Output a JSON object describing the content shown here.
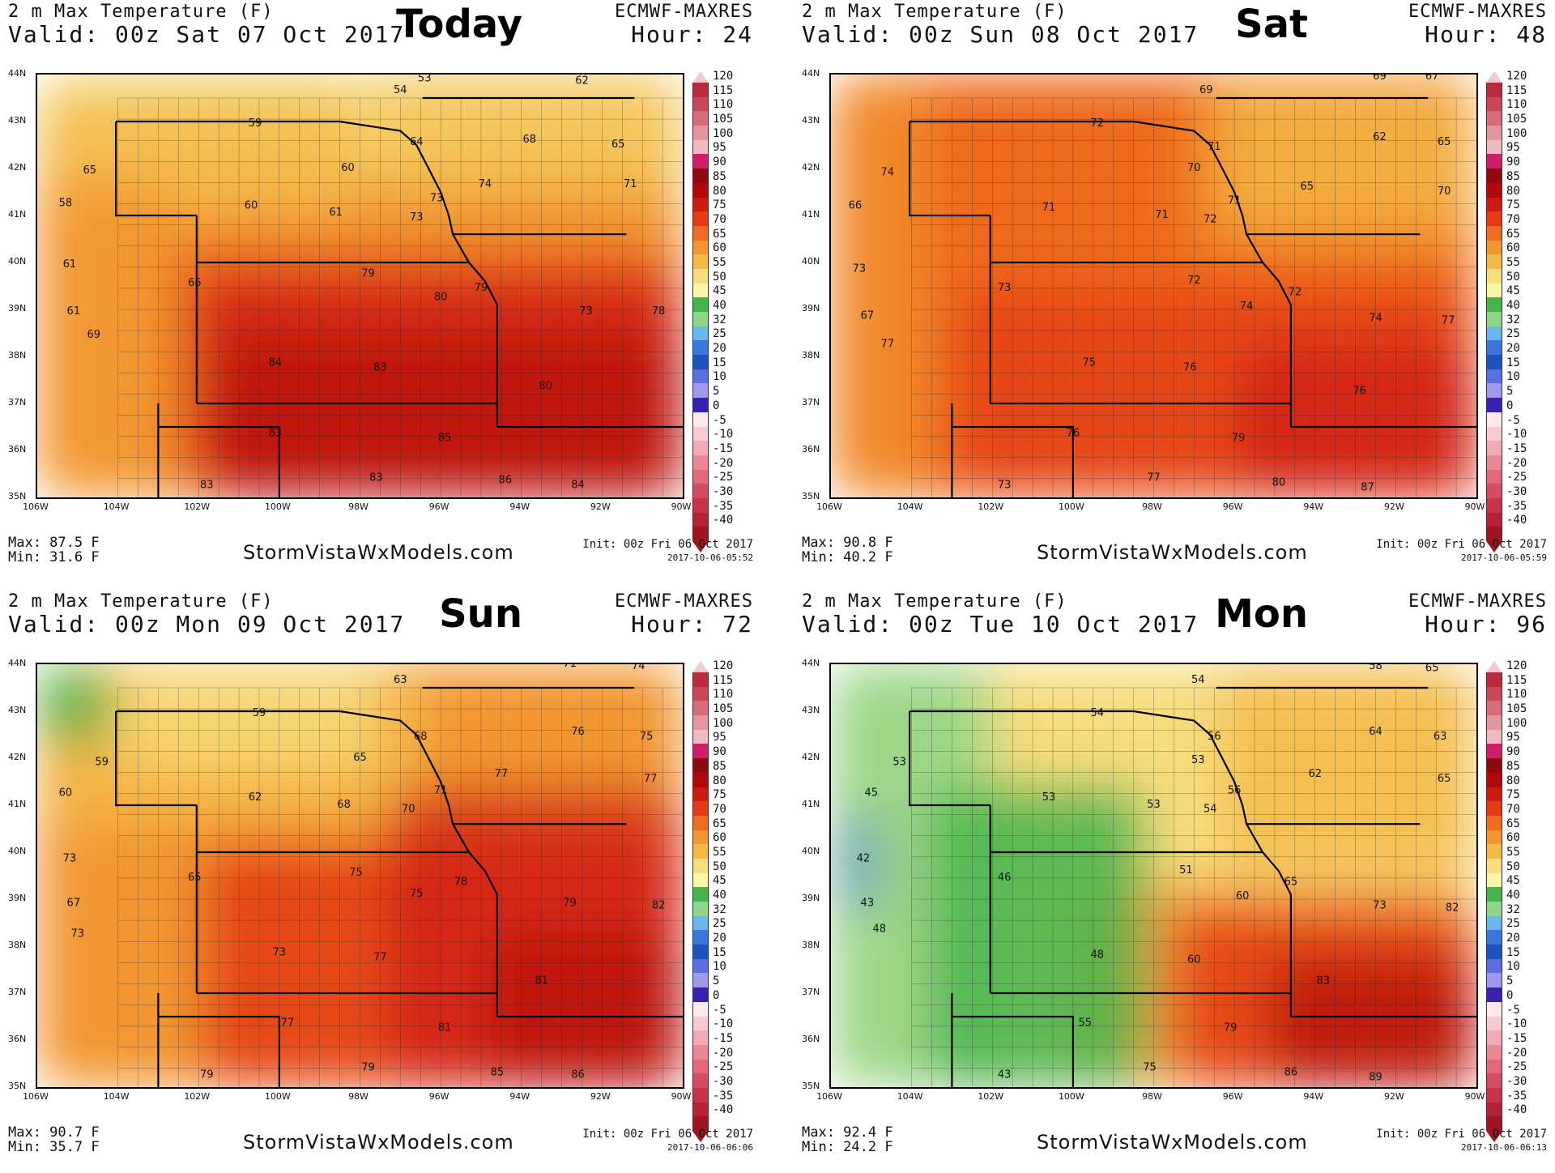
{
  "title_line": "2 m Max Temperature (F)",
  "model": "ECMWF-MAXRES",
  "site": "StormVistaWxModels.com",
  "lat_labels": [
    "44N",
    "43N",
    "42N",
    "41N",
    "40N",
    "39N",
    "38N",
    "37N",
    "36N",
    "35N"
  ],
  "lon_labels": [
    "106W",
    "104W",
    "102W",
    "100W",
    "98W",
    "96W",
    "94W",
    "92W",
    "90W"
  ],
  "colorbar_labels": [
    "120",
    "115",
    "110",
    "105",
    "100",
    "95",
    "90",
    "85",
    "80",
    "75",
    "70",
    "65",
    "60",
    "55",
    "50",
    "45",
    "40",
    "32",
    "25",
    "20",
    "15",
    "10",
    "5",
    "0",
    "-5",
    "-10",
    "-15",
    "-20",
    "-25",
    "-30",
    "-35",
    "-40"
  ],
  "colorbar_colors": [
    "#ba2a3b",
    "#c94757",
    "#d66d7a",
    "#e395a0",
    "#efbcc5",
    "#cf1d6c",
    "#8e0a0e",
    "#b0090c",
    "#cf1a12",
    "#e43b12",
    "#ef6b1f",
    "#f29630",
    "#f4b948",
    "#f6dd7d",
    "#f9f6a5",
    "#45b44c",
    "#8ed68a",
    "#69b7f0",
    "#3978d8",
    "#1d52c0",
    "#5a6fe0",
    "#9f9af0",
    "#3820b0",
    "#fde8ec",
    "#f8cad2",
    "#f2aab5",
    "#ea8896",
    "#e1697a",
    "#d64c60",
    "#ca3449",
    "#b92134",
    "#a0141f"
  ],
  "panels": [
    {
      "day": "Today",
      "valid": "Valid: 00z Sat 07 Oct 2017",
      "hour": "Hour: 24",
      "max": "Max: 87.5 F",
      "min": "Min: 31.6 F",
      "init": "Init: 00z Fri 06 Oct 2017",
      "stamp": "2017-10-06-05:52",
      "labels": [
        {
          "t": "53",
          "lon": -96.4,
          "lat": 43.85
        },
        {
          "t": "62",
          "lon": -92.5,
          "lat": 43.8
        },
        {
          "t": "54",
          "lon": -97.0,
          "lat": 43.6
        },
        {
          "t": "59",
          "lon": -100.6,
          "lat": 42.9
        },
        {
          "t": "68",
          "lon": -93.8,
          "lat": 42.55
        },
        {
          "t": "65",
          "lon": -91.6,
          "lat": 42.45
        },
        {
          "t": "64",
          "lon": -96.6,
          "lat": 42.5
        },
        {
          "t": "65",
          "lon": -104.7,
          "lat": 41.9
        },
        {
          "t": "60",
          "lon": -98.3,
          "lat": 41.95
        },
        {
          "t": "74",
          "lon": -94.9,
          "lat": 41.6
        },
        {
          "t": "73",
          "lon": -96.1,
          "lat": 41.3
        },
        {
          "t": "71",
          "lon": -91.3,
          "lat": 41.6
        },
        {
          "t": "58",
          "lon": -105.3,
          "lat": 41.2
        },
        {
          "t": "60",
          "lon": -100.7,
          "lat": 41.15
        },
        {
          "t": "61",
          "lon": -98.6,
          "lat": 41.0
        },
        {
          "t": "73",
          "lon": -96.6,
          "lat": 40.9
        },
        {
          "t": "61",
          "lon": -105.2,
          "lat": 39.9
        },
        {
          "t": "66",
          "lon": -102.1,
          "lat": 39.5
        },
        {
          "t": "79",
          "lon": -97.8,
          "lat": 39.7
        },
        {
          "t": "79",
          "lon": -95.0,
          "lat": 39.4
        },
        {
          "t": "80",
          "lon": -96.0,
          "lat": 39.2
        },
        {
          "t": "61",
          "lon": -105.1,
          "lat": 38.9
        },
        {
          "t": "73",
          "lon": -92.4,
          "lat": 38.9
        },
        {
          "t": "78",
          "lon": -90.6,
          "lat": 38.9
        },
        {
          "t": "69",
          "lon": -104.6,
          "lat": 38.4
        },
        {
          "t": "84",
          "lon": -100.1,
          "lat": 37.8
        },
        {
          "t": "83",
          "lon": -97.5,
          "lat": 37.7
        },
        {
          "t": "80",
          "lon": -93.4,
          "lat": 37.3
        },
        {
          "t": "83",
          "lon": -100.1,
          "lat": 36.3
        },
        {
          "t": "85",
          "lon": -95.9,
          "lat": 36.2
        },
        {
          "t": "83",
          "lon": -101.8,
          "lat": 35.2
        },
        {
          "t": "83",
          "lon": -97.6,
          "lat": 35.35
        },
        {
          "t": "86",
          "lon": -94.4,
          "lat": 35.3
        },
        {
          "t": "84",
          "lon": -92.6,
          "lat": 35.2
        }
      ]
    },
    {
      "day": "Sat",
      "valid": "Valid: 00z Sun 08 Oct 2017",
      "hour": "Hour: 48",
      "max": "Max: 90.8 F",
      "min": "Min: 40.2 F",
      "init": "Init: 00z Fri 06 Oct 2017",
      "stamp": "2017-10-06-05:59",
      "labels": [
        {
          "t": "69",
          "lon": -92.4,
          "lat": 43.9
        },
        {
          "t": "67",
          "lon": -91.1,
          "lat": 43.9
        },
        {
          "t": "69",
          "lon": -96.7,
          "lat": 43.6
        },
        {
          "t": "72",
          "lon": -99.4,
          "lat": 42.9
        },
        {
          "t": "62",
          "lon": -92.4,
          "lat": 42.6
        },
        {
          "t": "65",
          "lon": -90.8,
          "lat": 42.5
        },
        {
          "t": "71",
          "lon": -96.5,
          "lat": 42.4
        },
        {
          "t": "70",
          "lon": -97.0,
          "lat": 41.95
        },
        {
          "t": "74",
          "lon": -104.6,
          "lat": 41.85
        },
        {
          "t": "65",
          "lon": -94.2,
          "lat": 41.55
        },
        {
          "t": "70",
          "lon": -90.8,
          "lat": 41.45
        },
        {
          "t": "66",
          "lon": -105.4,
          "lat": 41.15
        },
        {
          "t": "71",
          "lon": -100.6,
          "lat": 41.1
        },
        {
          "t": "71",
          "lon": -97.8,
          "lat": 40.95
        },
        {
          "t": "71",
          "lon": -96.0,
          "lat": 41.25
        },
        {
          "t": "72",
          "lon": -96.6,
          "lat": 40.85
        },
        {
          "t": "73",
          "lon": -105.3,
          "lat": 39.8
        },
        {
          "t": "72",
          "lon": -97.0,
          "lat": 39.55
        },
        {
          "t": "73",
          "lon": -101.7,
          "lat": 39.4
        },
        {
          "t": "72",
          "lon": -94.5,
          "lat": 39.3
        },
        {
          "t": "74",
          "lon": -95.7,
          "lat": 39.0
        },
        {
          "t": "67",
          "lon": -105.1,
          "lat": 38.8
        },
        {
          "t": "74",
          "lon": -92.5,
          "lat": 38.75
        },
        {
          "t": "77",
          "lon": -90.7,
          "lat": 38.7
        },
        {
          "t": "77",
          "lon": -104.6,
          "lat": 38.2
        },
        {
          "t": "75",
          "lon": -99.6,
          "lat": 37.8
        },
        {
          "t": "76",
          "lon": -97.1,
          "lat": 37.7
        },
        {
          "t": "76",
          "lon": -92.9,
          "lat": 37.2
        },
        {
          "t": "76",
          "lon": -100.0,
          "lat": 36.3
        },
        {
          "t": "79",
          "lon": -95.9,
          "lat": 36.2
        },
        {
          "t": "73",
          "lon": -101.7,
          "lat": 35.2
        },
        {
          "t": "77",
          "lon": -98.0,
          "lat": 35.35
        },
        {
          "t": "80",
          "lon": -94.9,
          "lat": 35.25
        },
        {
          "t": "87",
          "lon": -92.7,
          "lat": 35.15
        }
      ]
    },
    {
      "day": "Sun",
      "valid": "Valid: 00z Mon 09 Oct 2017",
      "hour": "Hour: 72",
      "max": "Max: 90.7 F",
      "min": "Min: 35.7 F",
      "init": "Init: 00z Fri 06 Oct 2017",
      "stamp": "2017-10-06-06:06",
      "labels": [
        {
          "t": "71",
          "lon": -92.8,
          "lat": 43.95
        },
        {
          "t": "74",
          "lon": -91.1,
          "lat": 43.9
        },
        {
          "t": "63",
          "lon": -97.0,
          "lat": 43.6
        },
        {
          "t": "59",
          "lon": -100.5,
          "lat": 42.9
        },
        {
          "t": "76",
          "lon": -92.6,
          "lat": 42.5
        },
        {
          "t": "75",
          "lon": -90.9,
          "lat": 42.4
        },
        {
          "t": "68",
          "lon": -96.5,
          "lat": 42.4
        },
        {
          "t": "65",
          "lon": -98.0,
          "lat": 41.95
        },
        {
          "t": "59",
          "lon": -104.4,
          "lat": 41.85
        },
        {
          "t": "77",
          "lon": -94.5,
          "lat": 41.6
        },
        {
          "t": "77",
          "lon": -90.8,
          "lat": 41.5
        },
        {
          "t": "60",
          "lon": -105.3,
          "lat": 41.2
        },
        {
          "t": "62",
          "lon": -100.6,
          "lat": 41.1
        },
        {
          "t": "68",
          "lon": -98.4,
          "lat": 40.95
        },
        {
          "t": "71",
          "lon": -96.0,
          "lat": 41.25
        },
        {
          "t": "70",
          "lon": -96.8,
          "lat": 40.85
        },
        {
          "t": "73",
          "lon": -105.2,
          "lat": 39.8
        },
        {
          "t": "65",
          "lon": -102.1,
          "lat": 39.4
        },
        {
          "t": "75",
          "lon": -98.1,
          "lat": 39.5
        },
        {
          "t": "78",
          "lon": -95.5,
          "lat": 39.3
        },
        {
          "t": "75",
          "lon": -96.6,
          "lat": 39.05
        },
        {
          "t": "67",
          "lon": -105.1,
          "lat": 38.85
        },
        {
          "t": "79",
          "lon": -92.8,
          "lat": 38.85
        },
        {
          "t": "82",
          "lon": -90.6,
          "lat": 38.8
        },
        {
          "t": "73",
          "lon": -105.0,
          "lat": 38.2
        },
        {
          "t": "73",
          "lon": -100.0,
          "lat": 37.8
        },
        {
          "t": "77",
          "lon": -97.5,
          "lat": 37.7
        },
        {
          "t": "81",
          "lon": -93.5,
          "lat": 37.2
        },
        {
          "t": "77",
          "lon": -99.8,
          "lat": 36.3
        },
        {
          "t": "81",
          "lon": -95.9,
          "lat": 36.2
        },
        {
          "t": "79",
          "lon": -101.8,
          "lat": 35.2
        },
        {
          "t": "79",
          "lon": -97.8,
          "lat": 35.35
        },
        {
          "t": "85",
          "lon": -94.6,
          "lat": 35.25
        },
        {
          "t": "86",
          "lon": -92.6,
          "lat": 35.2
        }
      ]
    },
    {
      "day": "Mon",
      "valid": "Valid: 00z Tue 10 Oct 2017",
      "hour": "Hour: 96",
      "max": "Max: 92.4 F",
      "min": "Min: 24.2 F",
      "init": "Init: 00z Fri 06 Oct 2017",
      "stamp": "2017-10-06-06:13",
      "labels": [
        {
          "t": "58",
          "lon": -92.5,
          "lat": 43.9
        },
        {
          "t": "65",
          "lon": -91.1,
          "lat": 43.85
        },
        {
          "t": "54",
          "lon": -96.9,
          "lat": 43.6
        },
        {
          "t": "54",
          "lon": -99.4,
          "lat": 42.9
        },
        {
          "t": "64",
          "lon": -92.5,
          "lat": 42.5
        },
        {
          "t": "63",
          "lon": -90.9,
          "lat": 42.4
        },
        {
          "t": "56",
          "lon": -96.5,
          "lat": 42.4
        },
        {
          "t": "53",
          "lon": -96.9,
          "lat": 41.9
        },
        {
          "t": "53",
          "lon": -104.3,
          "lat": 41.85
        },
        {
          "t": "62",
          "lon": -94.0,
          "lat": 41.6
        },
        {
          "t": "65",
          "lon": -90.8,
          "lat": 41.5
        },
        {
          "t": "45",
          "lon": -105.0,
          "lat": 41.2
        },
        {
          "t": "53",
          "lon": -100.6,
          "lat": 41.1
        },
        {
          "t": "53",
          "lon": -98.0,
          "lat": 40.95
        },
        {
          "t": "56",
          "lon": -96.0,
          "lat": 41.25
        },
        {
          "t": "54",
          "lon": -96.6,
          "lat": 40.85
        },
        {
          "t": "42",
          "lon": -105.2,
          "lat": 39.8
        },
        {
          "t": "46",
          "lon": -101.7,
          "lat": 39.4
        },
        {
          "t": "51",
          "lon": -97.2,
          "lat": 39.55
        },
        {
          "t": "65",
          "lon": -94.6,
          "lat": 39.3
        },
        {
          "t": "60",
          "lon": -95.8,
          "lat": 39.0
        },
        {
          "t": "43",
          "lon": -105.1,
          "lat": 38.85
        },
        {
          "t": "73",
          "lon": -92.4,
          "lat": 38.8
        },
        {
          "t": "82",
          "lon": -90.6,
          "lat": 38.75
        },
        {
          "t": "48",
          "lon": -104.8,
          "lat": 38.3
        },
        {
          "t": "48",
          "lon": -99.4,
          "lat": 37.75
        },
        {
          "t": "60",
          "lon": -97.0,
          "lat": 37.65
        },
        {
          "t": "83",
          "lon": -93.8,
          "lat": 37.2
        },
        {
          "t": "55",
          "lon": -99.7,
          "lat": 36.3
        },
        {
          "t": "79",
          "lon": -96.1,
          "lat": 36.2
        },
        {
          "t": "43",
          "lon": -101.7,
          "lat": 35.2
        },
        {
          "t": "75",
          "lon": -98.1,
          "lat": 35.35
        },
        {
          "t": "86",
          "lon": -94.6,
          "lat": 35.25
        },
        {
          "t": "89",
          "lon": -92.5,
          "lat": 35.15
        }
      ]
    }
  ]
}
